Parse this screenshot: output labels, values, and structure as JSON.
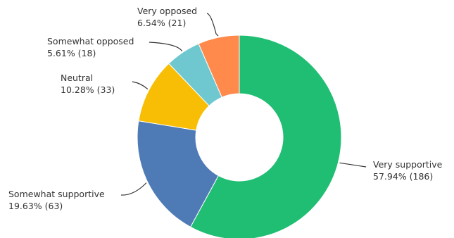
{
  "chart_data": {
    "type": "pie",
    "donut": true,
    "title": "",
    "slices": [
      {
        "label": "Very supportive",
        "percent": 57.94,
        "count": 186,
        "value_text": "57.94% (186)",
        "color": "#1FBE73"
      },
      {
        "label": "Somewhat supportive",
        "percent": 19.63,
        "count": 63,
        "value_text": "19.63% (63)",
        "color": "#4E7AB5"
      },
      {
        "label": "Neutral",
        "percent": 10.28,
        "count": 33,
        "value_text": "10.28% (33)",
        "color": "#F8BE05"
      },
      {
        "label": "Somewhat opposed",
        "percent": 5.61,
        "count": 18,
        "value_text": "5.61% (18)",
        "color": "#6FC8D0"
      },
      {
        "label": "Very opposed",
        "percent": 6.54,
        "count": 21,
        "value_text": "6.54% (21)",
        "color": "#FF8A4C"
      }
    ]
  }
}
